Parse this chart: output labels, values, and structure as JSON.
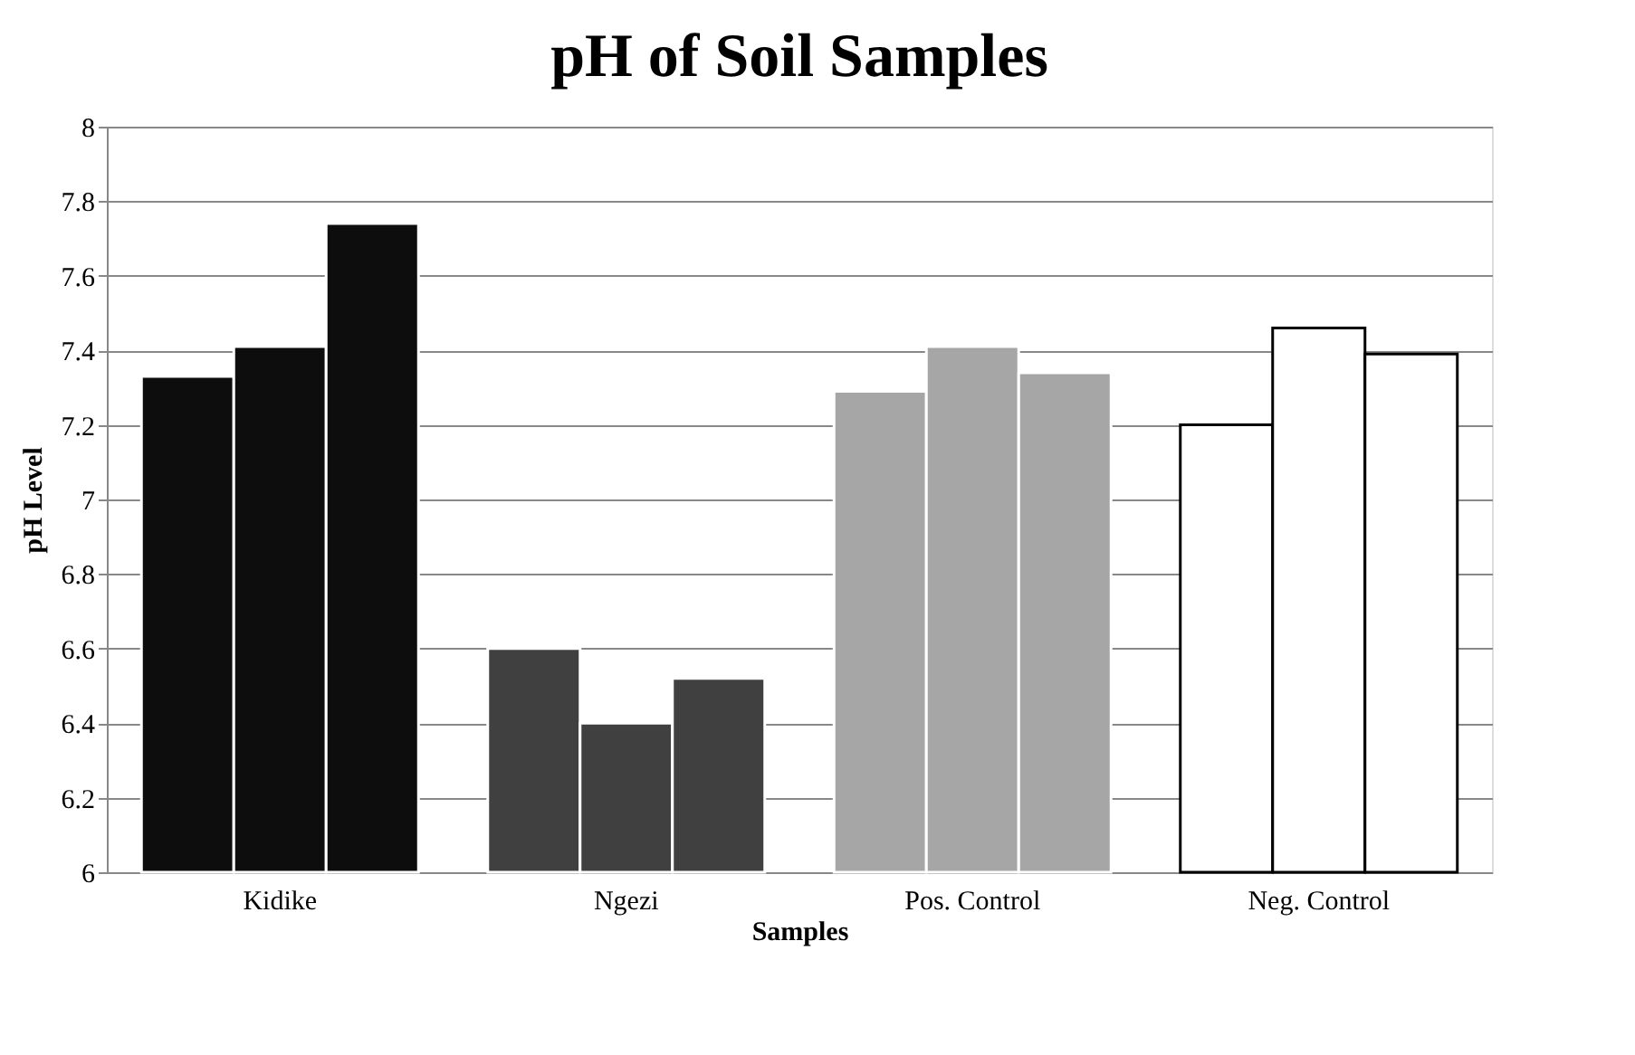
{
  "chart_data": {
    "type": "bar",
    "title": "pH of Soil Samples",
    "xlabel": "Samples",
    "ylabel": "pH Level",
    "categories": [
      "Kidike",
      "Ngezi",
      "Pos. Control",
      "Neg. Control"
    ],
    "series": [
      {
        "colors": [
          "#0d0d0d",
          "#404040",
          "#a6a6a6",
          "#ffffff"
        ],
        "values": [
          7.33,
          6.6,
          7.29,
          7.2
        ]
      },
      {
        "colors": [
          "#0d0d0d",
          "#404040",
          "#a6a6a6",
          "#ffffff"
        ],
        "values": [
          7.41,
          6.4,
          7.41,
          7.46
        ]
      },
      {
        "colors": [
          "#0d0d0d",
          "#404040",
          "#a6a6a6",
          "#ffffff"
        ],
        "values": [
          7.74,
          6.52,
          7.34,
          7.39
        ]
      }
    ],
    "ylim": [
      6,
      8
    ],
    "yticks": [
      6,
      6.2,
      6.4,
      6.6,
      6.8,
      7,
      7.2,
      7.4,
      7.6,
      7.8,
      8
    ],
    "grid": "y",
    "legend": false
  }
}
